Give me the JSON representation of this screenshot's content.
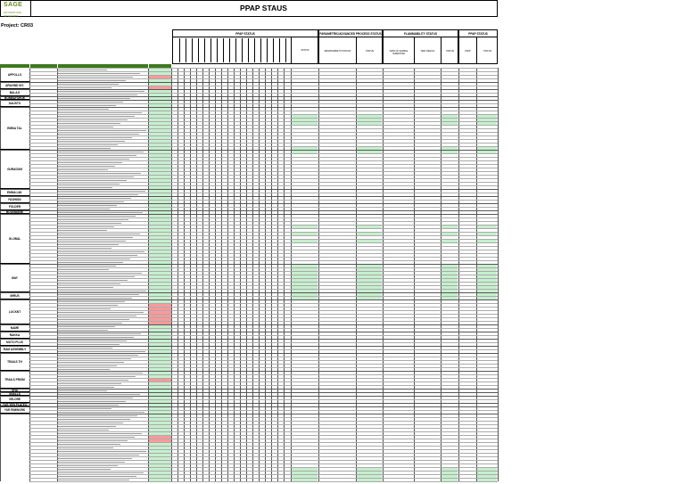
{
  "header": {
    "logo_text": "SAGE",
    "logo_sub": "AUTOMOTIVE INTERIORS",
    "title": "PPAP STAUS"
  },
  "project": "Project: CR03",
  "groups": [
    {
      "title": "PPAP STATUS"
    },
    {
      "title": "PARAMETRIC/ADVANCED PROCESS STATUS"
    },
    {
      "title": "FLAMMABILITY STATUS"
    },
    {
      "title": "PPAP STATUS"
    }
  ],
  "parametric_cols": [
    "STATUS",
    "RESPONSIBILITY/STATUS",
    "STATUS"
  ],
  "flam_cols": [
    "DATE OF SAMPLE SUBMITTED",
    "TEST RESULT",
    "STATUS"
  ],
  "ppap_cols": [
    "PPAP",
    "STATUS"
  ],
  "suppliers": [
    "APPOLLO",
    "ARAVIND INT.",
    "BALAJI",
    "BOMBAYSHOE",
    "DAUSTO",
    "EMMA TAL",
    "GURADOM",
    "EMMA LIM.",
    "FASHION",
    "FOLDER",
    "BOONWARE",
    "GLOBAL",
    "MAY",
    "MIRUS",
    "LOCKNT",
    "NAME",
    "RAKKA",
    "MOTO PLUS",
    "RAM ASSEMBLY",
    "TRAILS TH",
    "TRAILS PRISM",
    "SFAI",
    "SNALLS",
    "VELORE",
    "YUE YEN PLATES",
    "YUE RIMWORK"
  ],
  "colors": {
    "green": "#3d7a1d",
    "ok": "#c6efce",
    "bad": "#ff9a9a"
  }
}
